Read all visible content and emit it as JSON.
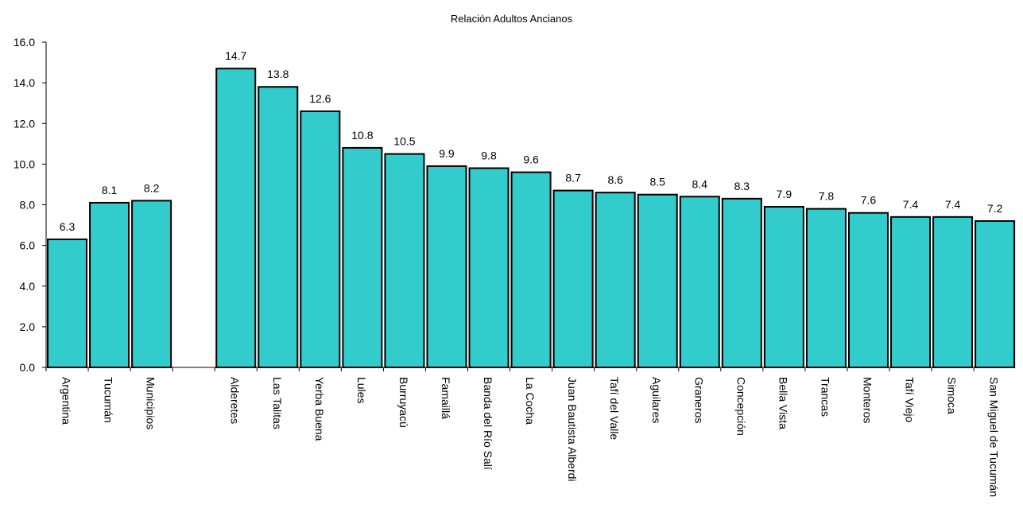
{
  "chart_data": {
    "type": "bar",
    "title": "Relación Adultos Ancianos",
    "xlabel": "",
    "ylabel": "",
    "ylim": [
      0,
      16
    ],
    "yticks": [
      "0.0",
      "2.0",
      "4.0",
      "6.0",
      "8.0",
      "10.0",
      "12.0",
      "14.0",
      "16.0"
    ],
    "grid": false,
    "legend": "none",
    "bar_color": "#33CCCC",
    "bar_edge_color": "#000000",
    "groups": [
      {
        "categories": [
          "Argentina",
          "Tucumán",
          "Municipios"
        ],
        "values": [
          6.3,
          8.1,
          8.2
        ],
        "labels": [
          "6.3",
          "8.1",
          "8.2"
        ]
      },
      {
        "categories": [
          "Alderetes",
          "Las Talitas",
          "Yerba Buena",
          "Lules",
          "Burruyacú",
          "Famaillá",
          "Banda del Río Salí",
          "La Cocha",
          "Juan Bautista Alberdi",
          "Tafí del Valle",
          "Aguilares",
          "Graneros",
          "Concepción",
          "Bella Vista",
          "Trancas",
          "Monteros",
          "Tafí Viejo",
          "Simoca",
          "San Miguel de Tucumán"
        ],
        "values": [
          14.7,
          13.8,
          12.6,
          10.8,
          10.5,
          9.9,
          9.8,
          9.6,
          8.7,
          8.6,
          8.5,
          8.4,
          8.3,
          7.9,
          7.8,
          7.6,
          7.4,
          7.4,
          7.2
        ],
        "labels": [
          "14.7",
          "13.8",
          "12.6",
          "10.8",
          "10.5",
          "9.9",
          "9.8",
          "9.6",
          "8.7",
          "8.6",
          "8.5",
          "8.4",
          "8.3",
          "7.9",
          "7.8",
          "7.6",
          "7.4",
          "7.4",
          "7.2"
        ]
      }
    ]
  }
}
